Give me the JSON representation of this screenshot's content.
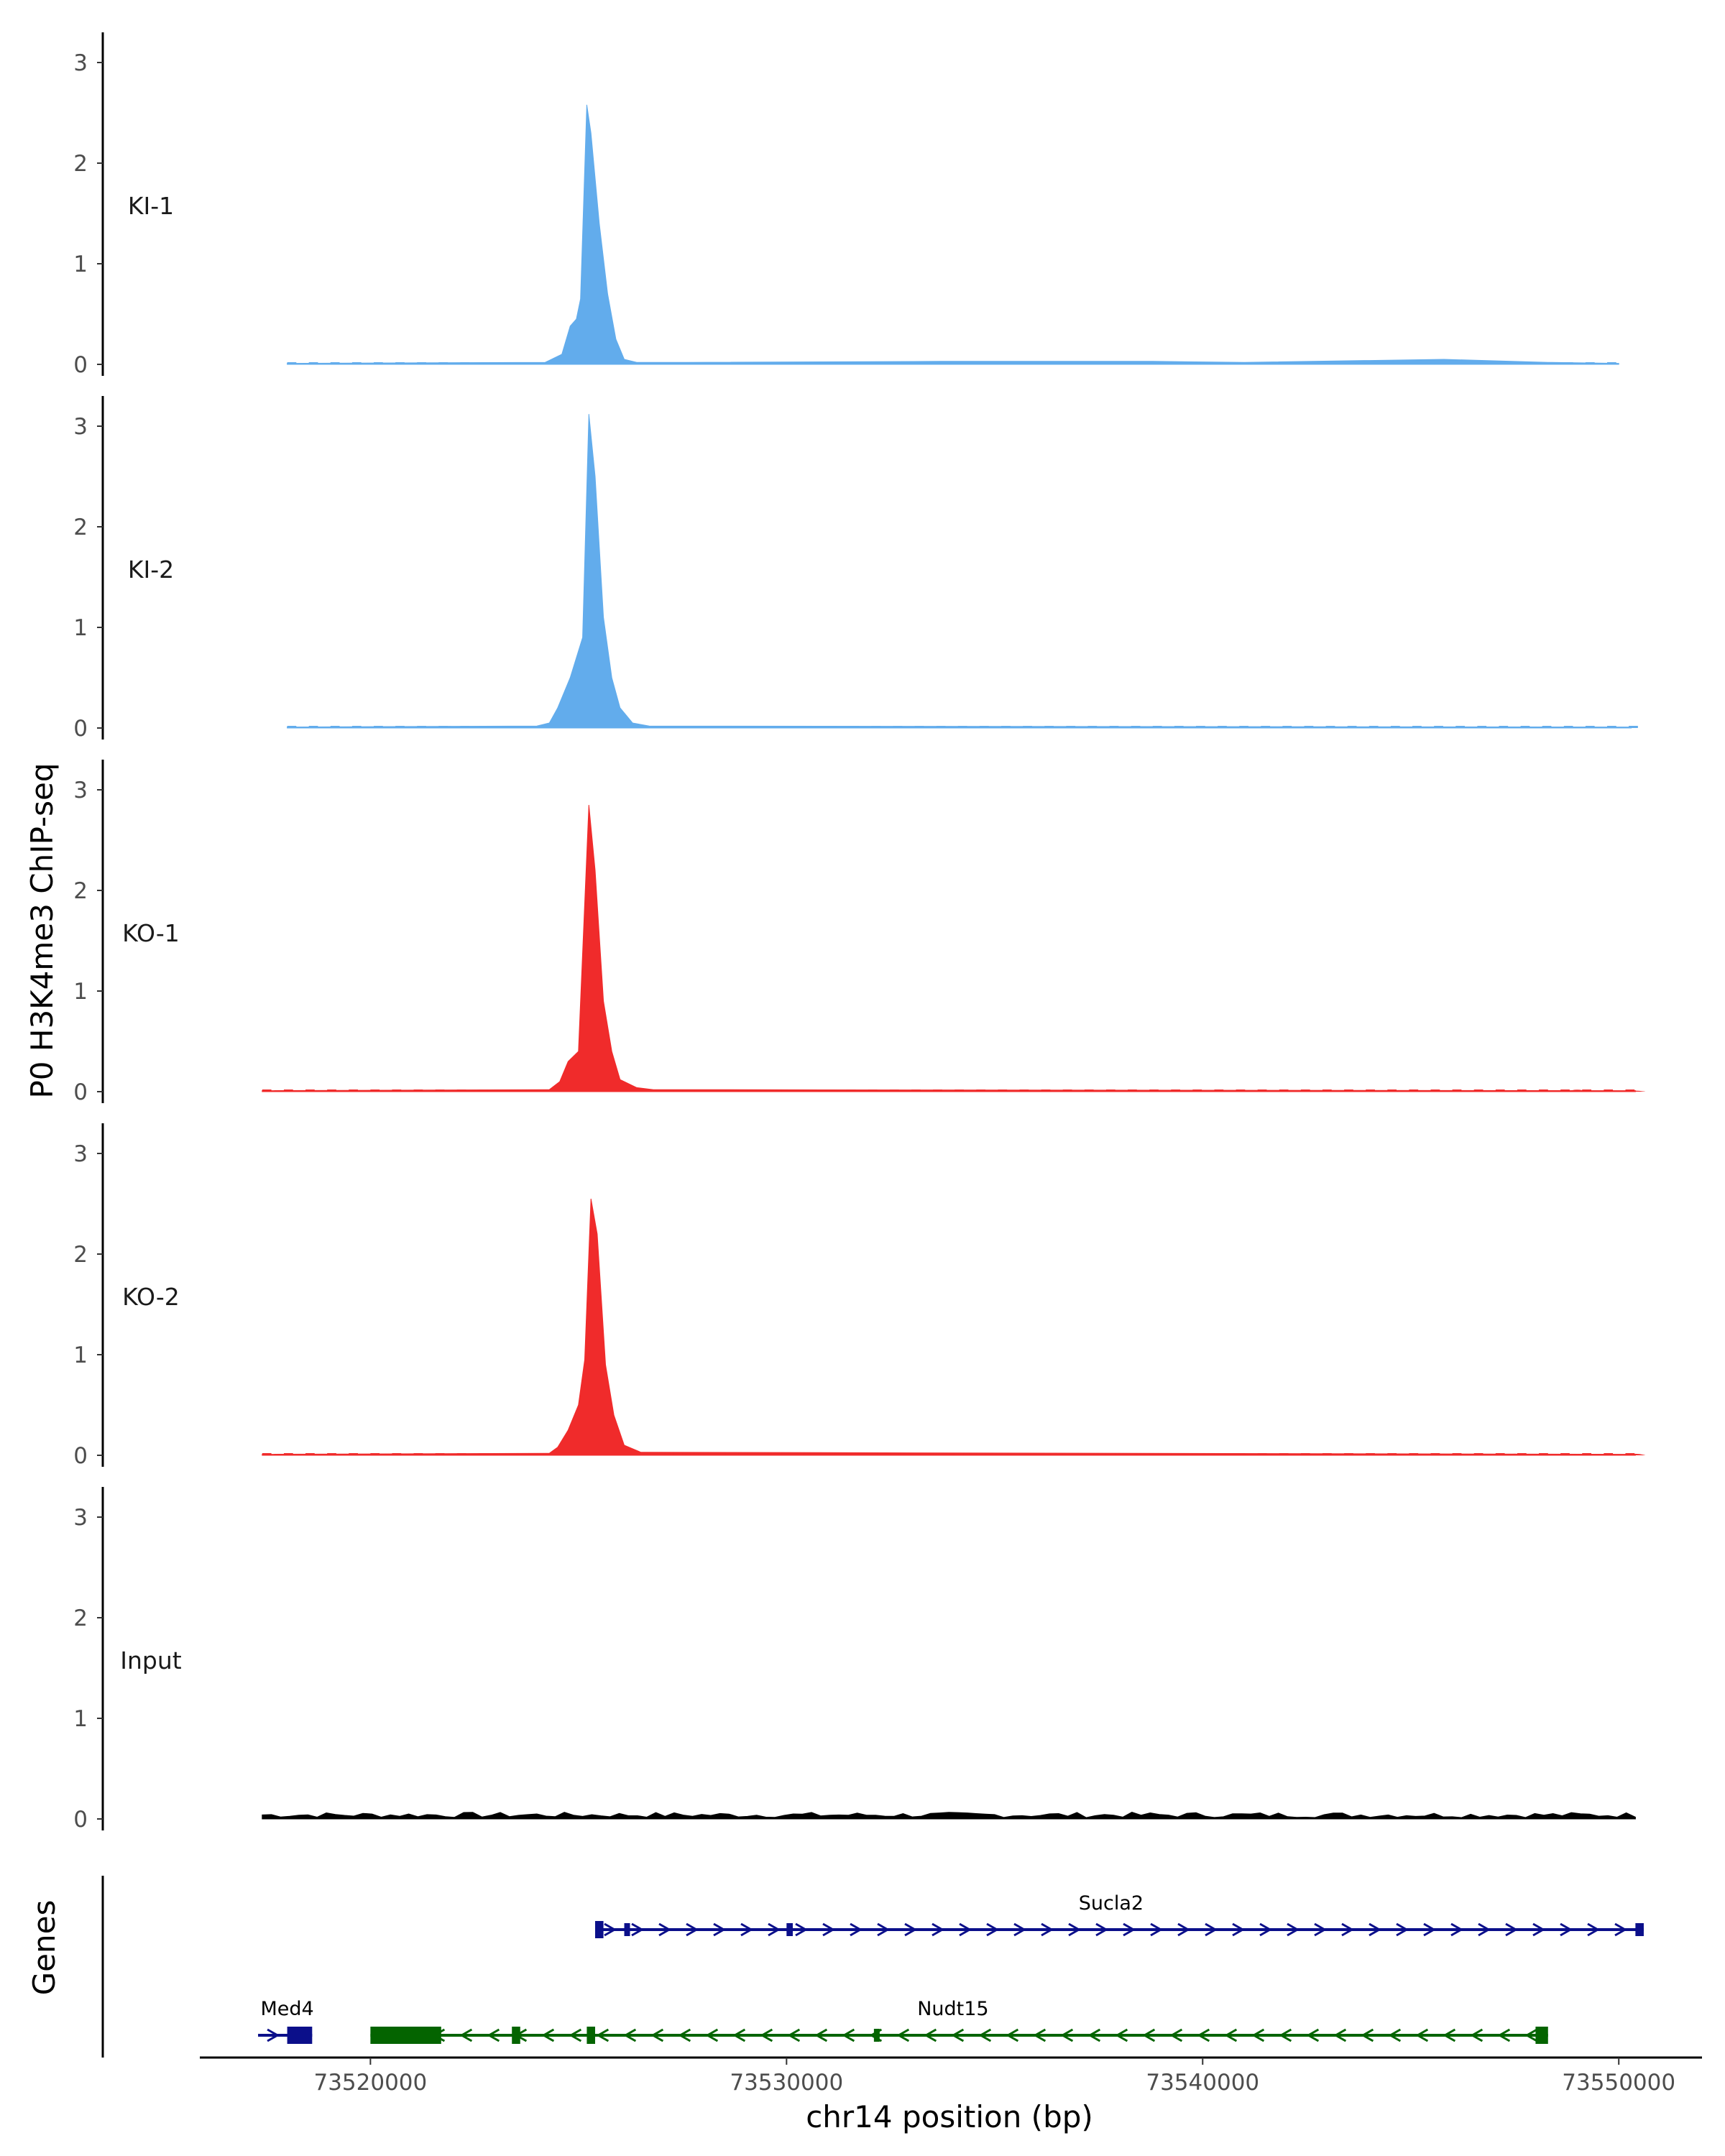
{
  "chart_data": {
    "type": "area",
    "title": "",
    "ylabel": "P0 H3K4me3 ChIP-seq",
    "xlabel": "chr14 position (bp)",
    "xlim": [
      73515900,
      73552000
    ],
    "ylim": [
      0,
      3.3
    ],
    "yticks": [
      "0",
      "1",
      "2",
      "3"
    ],
    "xticks": [
      {
        "value": 73520000,
        "label": "73520000"
      },
      {
        "value": 73530000,
        "label": "73530000"
      },
      {
        "value": 73540000,
        "label": "73540000"
      },
      {
        "value": 73550000,
        "label": "73550000"
      }
    ],
    "tracks": [
      {
        "name": "KI-1",
        "color": "#62acec",
        "points": [
          [
            73518000,
            0.01
          ],
          [
            73524200,
            0.02
          ],
          [
            73524400,
            0.06
          ],
          [
            73524600,
            0.1
          ],
          [
            73524800,
            0.38
          ],
          [
            73524950,
            0.45
          ],
          [
            73525050,
            0.65
          ],
          [
            73525200,
            2.58
          ],
          [
            73525300,
            2.3
          ],
          [
            73525500,
            1.4
          ],
          [
            73525700,
            0.7
          ],
          [
            73525900,
            0.25
          ],
          [
            73526100,
            0.05
          ],
          [
            73526400,
            0.02
          ],
          [
            73527600,
            0.02
          ],
          [
            73533700,
            0.03
          ],
          [
            73538800,
            0.03
          ],
          [
            73541000,
            0.02
          ],
          [
            73545800,
            0.05
          ],
          [
            73548300,
            0.02
          ],
          [
            73550000,
            0.01
          ]
        ],
        "dots": [
          [
            73522500,
            0.03
          ],
          [
            73527600,
            0.02
          ],
          [
            73530000,
            0.01
          ],
          [
            73533700,
            0.03
          ],
          [
            73538800,
            0.03
          ],
          [
            73541000,
            0.02
          ],
          [
            73545800,
            0.05
          ],
          [
            73548500,
            0.02
          ]
        ]
      },
      {
        "name": "KI-2",
        "color": "#62acec",
        "points": [
          [
            73518000,
            0.01
          ],
          [
            73524000,
            0.02
          ],
          [
            73524300,
            0.05
          ],
          [
            73524500,
            0.2
          ],
          [
            73524800,
            0.5
          ],
          [
            73525100,
            0.9
          ],
          [
            73525250,
            3.12
          ],
          [
            73525400,
            2.5
          ],
          [
            73525600,
            1.1
          ],
          [
            73525800,
            0.5
          ],
          [
            73526000,
            0.2
          ],
          [
            73526300,
            0.05
          ],
          [
            73526700,
            0.02
          ],
          [
            73550300,
            0.01
          ]
        ],
        "dots": [
          [
            73521900,
            0.04
          ],
          [
            73525000,
            0.02
          ],
          [
            73527400,
            0.02
          ],
          [
            73530800,
            0.02
          ],
          [
            73533500,
            0.03
          ],
          [
            73535000,
            0.02
          ],
          [
            73542000,
            0.02
          ],
          [
            73543700,
            0.02
          ],
          [
            73548600,
            0.02
          ],
          [
            73550000,
            0.01
          ]
        ]
      },
      {
        "name": "KO-1",
        "color": "#f02b2b",
        "points": [
          [
            73517400,
            0.01
          ],
          [
            73524300,
            0.02
          ],
          [
            73524550,
            0.1
          ],
          [
            73524750,
            0.3
          ],
          [
            73525000,
            0.4
          ],
          [
            73525250,
            2.85
          ],
          [
            73525400,
            2.2
          ],
          [
            73525600,
            0.9
          ],
          [
            73525800,
            0.4
          ],
          [
            73526000,
            0.12
          ],
          [
            73526400,
            0.04
          ],
          [
            73526800,
            0.02
          ],
          [
            73550400,
            0.01
          ]
        ],
        "dots": [
          [
            73521700,
            0.03
          ],
          [
            73529600,
            0.03
          ],
          [
            73531000,
            0.02
          ],
          [
            73540300,
            0.03
          ],
          [
            73545000,
            0.03
          ],
          [
            73549000,
            0.04
          ],
          [
            73550400,
            0.02
          ]
        ]
      },
      {
        "name": "KO-2",
        "color": "#f02b2b",
        "points": [
          [
            73517400,
            0.01
          ],
          [
            73524300,
            0.02
          ],
          [
            73524500,
            0.08
          ],
          [
            73524750,
            0.25
          ],
          [
            73525000,
            0.5
          ],
          [
            73525150,
            0.95
          ],
          [
            73525300,
            2.55
          ],
          [
            73525450,
            2.2
          ],
          [
            73525650,
            0.9
          ],
          [
            73525850,
            0.4
          ],
          [
            73526100,
            0.1
          ],
          [
            73526500,
            0.03
          ],
          [
            73550400,
            0.01
          ]
        ],
        "dots": [
          [
            73520500,
            0.02
          ],
          [
            73523700,
            0.03
          ],
          [
            73527800,
            0.03
          ],
          [
            73533800,
            0.04
          ],
          [
            73539000,
            0.02
          ],
          [
            73543000,
            0.03
          ],
          [
            73547500,
            0.03
          ],
          [
            73550400,
            0.03
          ]
        ]
      },
      {
        "name": "Input",
        "color": "#000000",
        "noise": 0.045,
        "points": [
          [
            73517400,
            0.03
          ],
          [
            73550400,
            0.04
          ]
        ],
        "dots": []
      }
    ],
    "genes_panel": {
      "label": "Genes",
      "genes": [
        {
          "name": "Med4",
          "strand": "+",
          "color": "#0b0f8a",
          "row": 2,
          "start": 73517300,
          "end": 73518600,
          "exons": [
            [
              73518000,
              73518600,
              "thick"
            ]
          ]
        },
        {
          "name": "Sucla2",
          "strand": "+",
          "color": "#0b0f8a",
          "row": 1,
          "start": 73525400,
          "end": 73550600,
          "exons": [
            [
              73525400,
              73525600,
              "thick"
            ],
            [
              73526100,
              73526200,
              "thin"
            ],
            [
              73530000,
              73530150,
              "thin"
            ],
            [
              73550400,
              73550600,
              "thin"
            ]
          ]
        },
        {
          "name": "Nudt15",
          "strand": "-",
          "color": "#046400",
          "row": 2,
          "start": 73520000,
          "end": 73548300,
          "exons": [
            [
              73520000,
              73521700,
              "thick"
            ],
            [
              73523400,
              73523600,
              "thick"
            ],
            [
              73525200,
              73525400,
              "thick"
            ],
            [
              73532100,
              73532200,
              "thin"
            ],
            [
              73548000,
              73548300,
              "thick"
            ]
          ]
        }
      ]
    }
  }
}
